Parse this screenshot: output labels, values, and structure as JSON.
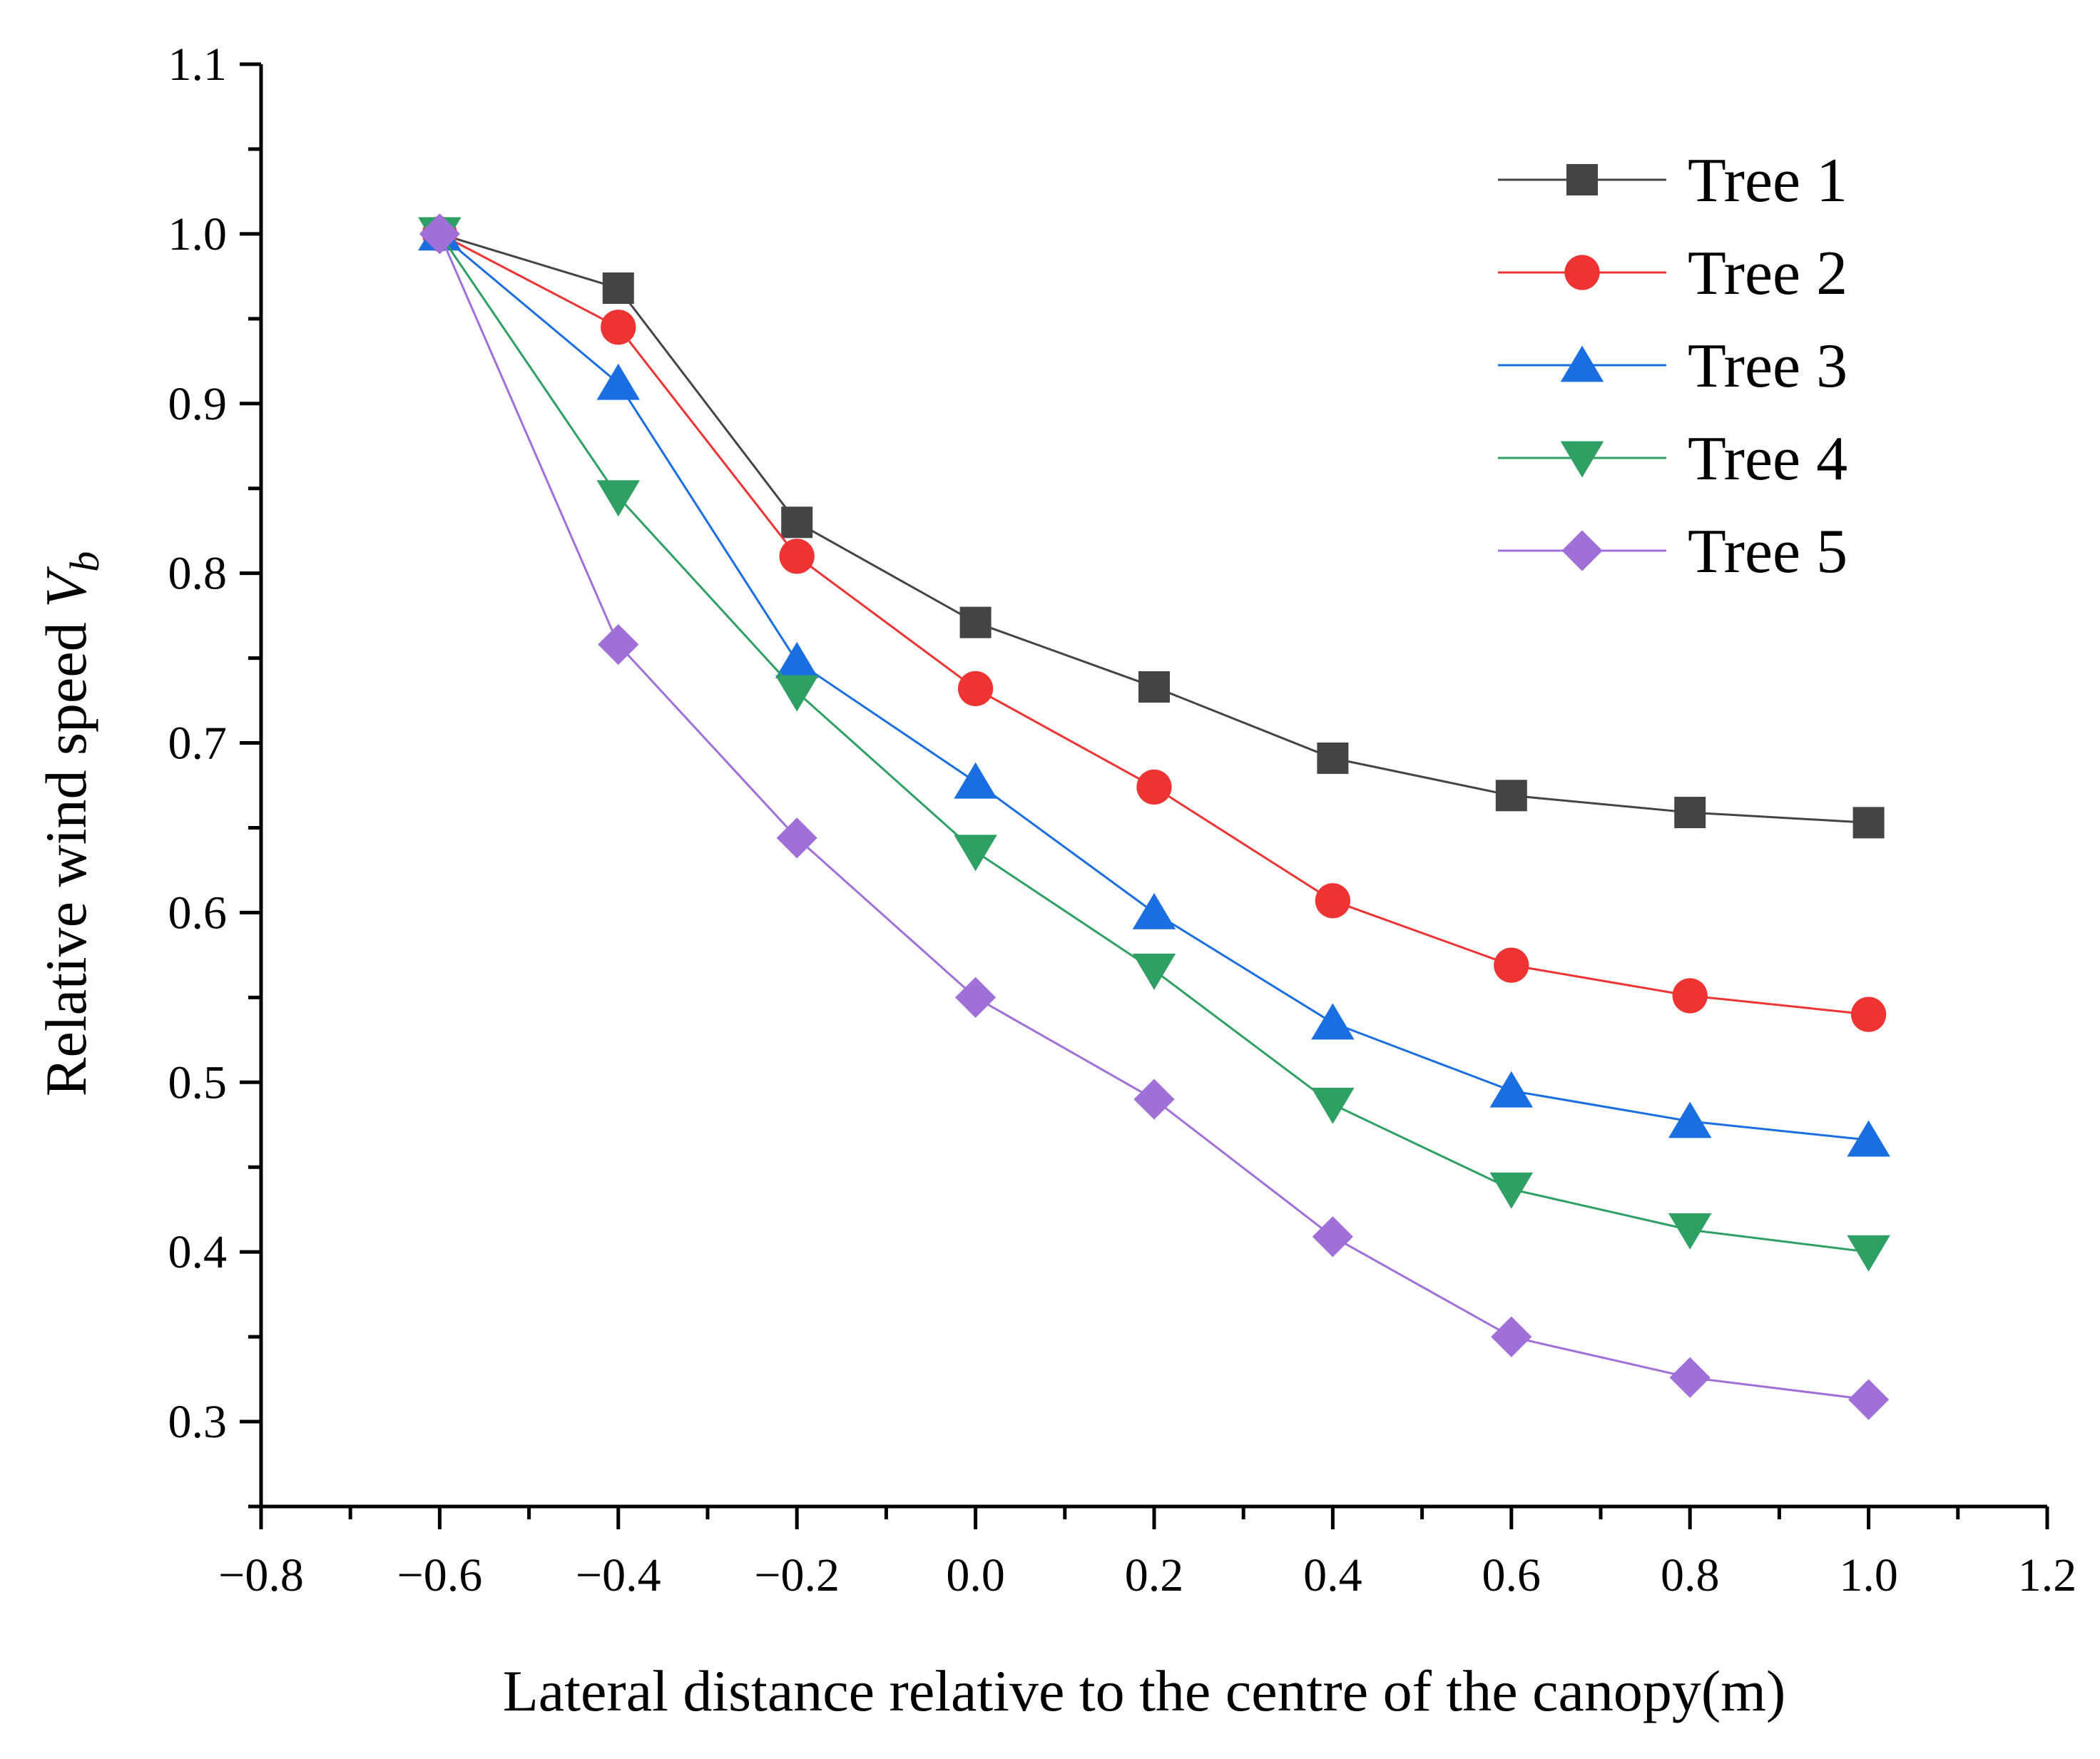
{
  "chart_data": {
    "type": "line",
    "title": "",
    "xlabel": "Lateral distance relative to the centre of the canopy(m)",
    "ylabel": {
      "text": "Relative wind speed ",
      "symbol": "V",
      "subscript": "b"
    },
    "xlim": [
      -0.8,
      1.2
    ],
    "ylim": [
      0.25,
      1.1
    ],
    "x_ticks": [
      "−0.8",
      "−0.6",
      "−0.4",
      "−0.2",
      "0.0",
      "0.2",
      "0.4",
      "0.6",
      "0.8",
      "1.0",
      "1.2"
    ],
    "y_ticks": [
      "0.3",
      "0.4",
      "0.5",
      "0.6",
      "0.7",
      "0.8",
      "0.9",
      "1.0",
      "1.1"
    ],
    "grid": false,
    "legend_position": "top-right",
    "x": [
      -0.6,
      -0.4,
      -0.2,
      0.0,
      0.2,
      0.4,
      0.6,
      0.8,
      1.0
    ],
    "series": [
      {
        "name": "Tree 1",
        "color": "#444444",
        "marker": "square",
        "values": [
          1.0,
          0.968,
          0.83,
          0.771,
          0.733,
          0.691,
          0.669,
          0.659,
          0.653
        ]
      },
      {
        "name": "Tree 2",
        "color": "#ee3333",
        "marker": "circle",
        "values": [
          1.0,
          0.945,
          0.81,
          0.732,
          0.674,
          0.607,
          0.569,
          0.551,
          0.54
        ]
      },
      {
        "name": "Tree 3",
        "color": "#1a6ee0",
        "marker": "triangle-up",
        "values": [
          1.0,
          0.912,
          0.748,
          0.677,
          0.6,
          0.535,
          0.495,
          0.477,
          0.466
        ]
      },
      {
        "name": "Tree 4",
        "color": "#2ea064",
        "marker": "triangle-down",
        "values": [
          1.0,
          0.845,
          0.73,
          0.636,
          0.566,
          0.487,
          0.437,
          0.413,
          0.4
        ]
      },
      {
        "name": "Tree 5",
        "color": "#a070d8",
        "marker": "diamond",
        "values": [
          1.0,
          0.758,
          0.644,
          0.55,
          0.49,
          0.409,
          0.35,
          0.326,
          0.313
        ]
      }
    ]
  }
}
